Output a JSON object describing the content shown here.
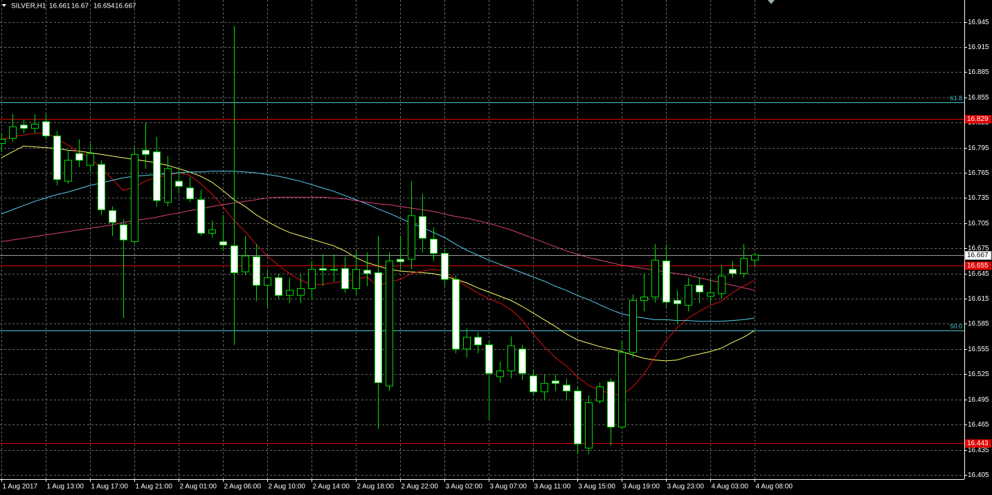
{
  "chart_data": {
    "type": "candlestick",
    "symbol": "SILVER,H1",
    "categories": [
      "1 Aug 2017",
      null,
      null,
      null,
      "1 Aug 13:00",
      null,
      null,
      null,
      "1 Aug 17:00",
      null,
      null,
      null,
      "1 Aug 21:00",
      null,
      null,
      null,
      "2 Aug 01:00",
      null,
      null,
      null,
      "2 Aug 06:00",
      null,
      null,
      null,
      "2 Aug 10:00",
      null,
      null,
      null,
      "2 Aug 14:00",
      null,
      null,
      null,
      "2 Aug 18:00",
      null,
      null,
      null,
      "2 Aug 22:00",
      null,
      null,
      null,
      "3 Aug 02:00",
      null,
      null,
      null,
      "3 Aug 07:00",
      null,
      null,
      null,
      "3 Aug 11:00",
      null,
      null,
      null,
      "3 Aug 15:00",
      null,
      null,
      null,
      "3 Aug 19:00",
      null,
      null,
      null,
      "3 Aug 23:00",
      null,
      null,
      null,
      "4 Aug 03:00",
      null,
      null,
      null,
      "4 Aug 08:00"
    ],
    "candles": [
      {
        "o": 16.8,
        "h": 16.812,
        "l": 16.79,
        "c": 16.805
      },
      {
        "o": 16.806,
        "h": 16.835,
        "l": 16.802,
        "c": 16.82
      },
      {
        "o": 16.822,
        "h": 16.828,
        "l": 16.812,
        "c": 16.818
      },
      {
        "o": 16.818,
        "h": 16.835,
        "l": 16.812,
        "c": 16.823
      },
      {
        "o": 16.826,
        "h": 16.835,
        "l": 16.805,
        "c": 16.809
      },
      {
        "o": 16.809,
        "h": 16.815,
        "l": 16.75,
        "c": 16.757
      },
      {
        "o": 16.755,
        "h": 16.792,
        "l": 16.752,
        "c": 16.78
      },
      {
        "o": 16.788,
        "h": 16.805,
        "l": 16.772,
        "c": 16.78
      },
      {
        "o": 16.774,
        "h": 16.8,
        "l": 16.765,
        "c": 16.788
      },
      {
        "o": 16.775,
        "h": 16.78,
        "l": 16.715,
        "c": 16.721
      },
      {
        "o": 16.72,
        "h": 16.725,
        "l": 16.69,
        "c": 16.706
      },
      {
        "o": 16.703,
        "h": 16.71,
        "l": 16.592,
        "c": 16.685
      },
      {
        "o": 16.683,
        "h": 16.795,
        "l": 16.68,
        "c": 16.787
      },
      {
        "o": 16.792,
        "h": 16.825,
        "l": 16.77,
        "c": 16.787
      },
      {
        "o": 16.79,
        "h": 16.808,
        "l": 16.725,
        "c": 16.732
      },
      {
        "o": 16.73,
        "h": 16.785,
        "l": 16.725,
        "c": 16.77
      },
      {
        "o": 16.755,
        "h": 16.77,
        "l": 16.74,
        "c": 16.749
      },
      {
        "o": 16.747,
        "h": 16.76,
        "l": 16.73,
        "c": 16.734
      },
      {
        "o": 16.733,
        "h": 16.745,
        "l": 16.69,
        "c": 16.693
      },
      {
        "o": 16.693,
        "h": 16.708,
        "l": 16.688,
        "c": 16.697
      },
      {
        "o": 16.683,
        "h": 16.715,
        "l": 16.672,
        "c": 16.679
      },
      {
        "o": 16.678,
        "h": 16.94,
        "l": 16.56,
        "c": 16.646
      },
      {
        "o": 16.647,
        "h": 16.69,
        "l": 16.643,
        "c": 16.666
      },
      {
        "o": 16.665,
        "h": 16.68,
        "l": 16.612,
        "c": 16.631
      },
      {
        "o": 16.631,
        "h": 16.65,
        "l": 16.605,
        "c": 16.64
      },
      {
        "o": 16.64,
        "h": 16.645,
        "l": 16.615,
        "c": 16.619
      },
      {
        "o": 16.619,
        "h": 16.64,
        "l": 16.61,
        "c": 16.625
      },
      {
        "o": 16.619,
        "h": 16.645,
        "l": 16.61,
        "c": 16.627
      },
      {
        "o": 16.627,
        "h": 16.66,
        "l": 16.615,
        "c": 16.65
      },
      {
        "o": 16.651,
        "h": 16.668,
        "l": 16.63,
        "c": 16.649
      },
      {
        "o": 16.65,
        "h": 16.668,
        "l": 16.635,
        "c": 16.649
      },
      {
        "o": 16.651,
        "h": 16.665,
        "l": 16.622,
        "c": 16.627
      },
      {
        "o": 16.627,
        "h": 16.672,
        "l": 16.62,
        "c": 16.65
      },
      {
        "o": 16.649,
        "h": 16.67,
        "l": 16.63,
        "c": 16.645
      },
      {
        "o": 16.646,
        "h": 16.69,
        "l": 16.46,
        "c": 16.515
      },
      {
        "o": 16.511,
        "h": 16.67,
        "l": 16.505,
        "c": 16.66
      },
      {
        "o": 16.662,
        "h": 16.69,
        "l": 16.65,
        "c": 16.659
      },
      {
        "o": 16.662,
        "h": 16.755,
        "l": 16.65,
        "c": 16.714
      },
      {
        "o": 16.713,
        "h": 16.74,
        "l": 16.67,
        "c": 16.687
      },
      {
        "o": 16.686,
        "h": 16.7,
        "l": 16.66,
        "c": 16.669
      },
      {
        "o": 16.669,
        "h": 16.675,
        "l": 16.63,
        "c": 16.638
      },
      {
        "o": 16.638,
        "h": 16.643,
        "l": 16.55,
        "c": 16.555
      },
      {
        "o": 16.555,
        "h": 16.58,
        "l": 16.545,
        "c": 16.569
      },
      {
        "o": 16.569,
        "h": 16.575,
        "l": 16.55,
        "c": 16.56
      },
      {
        "o": 16.56,
        "h": 16.565,
        "l": 16.47,
        "c": 16.526
      },
      {
        "o": 16.522,
        "h": 16.54,
        "l": 16.515,
        "c": 16.529
      },
      {
        "o": 16.529,
        "h": 16.57,
        "l": 16.52,
        "c": 16.559
      },
      {
        "o": 16.555,
        "h": 16.56,
        "l": 16.518,
        "c": 16.526
      },
      {
        "o": 16.523,
        "h": 16.53,
        "l": 16.5,
        "c": 16.504
      },
      {
        "o": 16.504,
        "h": 16.525,
        "l": 16.495,
        "c": 16.514
      },
      {
        "o": 16.517,
        "h": 16.525,
        "l": 16.505,
        "c": 16.514
      },
      {
        "o": 16.512,
        "h": 16.52,
        "l": 16.495,
        "c": 16.505
      },
      {
        "o": 16.505,
        "h": 16.51,
        "l": 16.43,
        "c": 16.442
      },
      {
        "o": 16.437,
        "h": 16.5,
        "l": 16.43,
        "c": 16.491
      },
      {
        "o": 16.493,
        "h": 16.515,
        "l": 16.49,
        "c": 16.51
      },
      {
        "o": 16.516,
        "h": 16.52,
        "l": 16.44,
        "c": 16.462
      },
      {
        "o": 16.462,
        "h": 16.565,
        "l": 16.46,
        "c": 16.551
      },
      {
        "o": 16.551,
        "h": 16.62,
        "l": 16.545,
        "c": 16.613
      },
      {
        "o": 16.613,
        "h": 16.645,
        "l": 16.6,
        "c": 16.617
      },
      {
        "o": 16.617,
        "h": 16.68,
        "l": 16.61,
        "c": 16.661
      },
      {
        "o": 16.66,
        "h": 16.68,
        "l": 16.605,
        "c": 16.611
      },
      {
        "o": 16.613,
        "h": 16.625,
        "l": 16.585,
        "c": 16.609
      },
      {
        "o": 16.607,
        "h": 16.64,
        "l": 16.6,
        "c": 16.631
      },
      {
        "o": 16.631,
        "h": 16.64,
        "l": 16.61,
        "c": 16.623
      },
      {
        "o": 16.618,
        "h": 16.64,
        "l": 16.61,
        "c": 16.622
      },
      {
        "o": 16.621,
        "h": 16.655,
        "l": 16.615,
        "c": 16.642
      },
      {
        "o": 16.65,
        "h": 16.66,
        "l": 16.64,
        "c": 16.645
      },
      {
        "o": 16.645,
        "h": 16.68,
        "l": 16.64,
        "c": 16.663
      },
      {
        "o": 16.661,
        "h": 16.67,
        "l": 16.654,
        "c": 16.667
      }
    ],
    "series": [
      {
        "color": "#ffff66",
        "values": [
          16.783,
          16.79,
          16.797,
          16.796,
          16.795,
          16.794,
          16.792,
          16.791,
          16.789,
          16.787,
          16.785,
          16.783,
          16.781,
          16.779,
          16.777,
          16.774,
          16.77,
          16.766,
          16.761,
          16.754,
          16.744,
          16.733,
          16.725,
          16.715,
          16.707,
          16.7,
          16.694,
          16.69,
          16.686,
          16.682,
          16.678,
          16.672,
          16.664,
          16.658,
          16.654,
          16.65,
          16.648,
          16.647,
          16.646,
          16.645,
          16.642,
          16.638,
          16.634,
          16.628,
          16.623,
          16.618,
          16.613,
          16.606,
          16.598,
          16.59,
          16.582,
          16.573,
          16.566,
          16.562,
          16.558,
          16.555,
          16.552,
          16.548,
          16.544,
          16.542,
          16.541,
          16.542,
          16.546,
          16.549,
          16.552,
          16.556,
          16.563,
          16.569,
          16.577
        ]
      },
      {
        "color": "#e01010",
        "values": [
          16.805,
          16.808,
          16.81,
          16.812,
          16.813,
          16.806,
          16.798,
          16.79,
          16.783,
          16.77,
          16.758,
          16.744,
          16.748,
          16.755,
          16.76,
          16.762,
          16.765,
          16.762,
          16.752,
          16.74,
          16.725,
          16.708,
          16.695,
          16.68,
          16.666,
          16.655,
          16.645,
          16.637,
          16.632,
          16.632,
          16.634,
          16.636,
          16.638,
          16.641,
          16.63,
          16.635,
          16.638,
          16.645,
          16.648,
          16.65,
          16.648,
          16.638,
          16.63,
          16.622,
          16.615,
          16.61,
          16.602,
          16.59,
          16.573,
          16.558,
          16.545,
          16.535,
          16.522,
          16.512,
          16.506,
          16.502,
          16.5,
          16.51,
          16.525,
          16.545,
          16.565,
          16.58,
          16.592,
          16.6,
          16.607,
          16.612,
          16.622,
          16.63,
          16.637
        ]
      },
      {
        "color": "#5bd0f0",
        "values": [
          16.716,
          16.721,
          16.726,
          16.731,
          16.735,
          16.739,
          16.742,
          16.746,
          16.75,
          16.753,
          16.756,
          16.759,
          16.761,
          16.762,
          16.763,
          16.764,
          16.765,
          16.766,
          16.766,
          16.767,
          16.767,
          16.767,
          16.766,
          16.765,
          16.763,
          16.761,
          16.758,
          16.755,
          16.751,
          16.747,
          16.743,
          16.738,
          16.733,
          16.728,
          16.722,
          16.717,
          16.711,
          16.705,
          16.7,
          16.694,
          16.688,
          16.68,
          16.673,
          16.667,
          16.661,
          16.656,
          16.651,
          16.646,
          16.641,
          16.636,
          16.63,
          16.625,
          16.619,
          16.614,
          16.608,
          16.602,
          16.597,
          16.594,
          16.592,
          16.59,
          16.59,
          16.589,
          16.589,
          16.588,
          16.588,
          16.588,
          16.589,
          16.59,
          16.592
        ]
      },
      {
        "color": "#e0407a",
        "values": [
          16.683,
          16.685,
          16.687,
          16.689,
          16.691,
          16.693,
          16.695,
          16.697,
          16.699,
          16.701,
          16.703,
          16.706,
          16.708,
          16.71,
          16.712,
          16.715,
          16.717,
          16.72,
          16.722,
          16.725,
          16.727,
          16.729,
          16.731,
          16.733,
          16.735,
          16.736,
          16.736,
          16.736,
          16.736,
          16.736,
          16.735,
          16.734,
          16.732,
          16.73,
          16.728,
          16.727,
          16.725,
          16.723,
          16.721,
          16.719,
          16.716,
          16.713,
          16.711,
          16.708,
          16.705,
          16.701,
          16.697,
          16.692,
          16.687,
          16.682,
          16.677,
          16.672,
          16.668,
          16.664,
          16.661,
          16.658,
          16.655,
          16.653,
          16.651,
          16.649,
          16.647,
          16.645,
          16.643,
          16.64,
          16.637,
          16.634,
          16.631,
          16.628,
          16.625
        ]
      }
    ],
    "price_levels": [
      16.829,
      16.655,
      16.443
    ],
    "price_level_color": "#e00000",
    "fib_levels": [
      {
        "value": 16.849,
        "label": "61.8"
      },
      {
        "value": 16.577,
        "label": "50.0"
      }
    ],
    "fib_color": "#4cc6d6",
    "ylim": [
      16.4,
      16.971
    ],
    "yticks": [
      16.945,
      16.915,
      16.885,
      16.855,
      16.825,
      16.795,
      16.765,
      16.735,
      16.705,
      16.675,
      16.645,
      16.615,
      16.585,
      16.555,
      16.525,
      16.495,
      16.465,
      16.435,
      16.405
    ],
    "grid": true,
    "candle_color": "#00e000"
  }
}
